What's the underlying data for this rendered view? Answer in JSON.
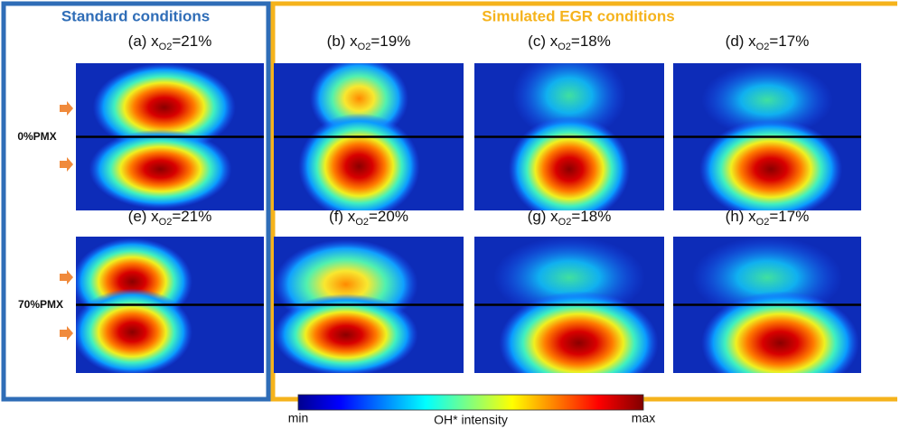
{
  "groups": {
    "standard": "Standard conditions",
    "egr": "Simulated EGR conditions"
  },
  "rows": [
    "0%PMX",
    "70%PMX"
  ],
  "panels": [
    {
      "prefix": "(a) x",
      "sub": "O2",
      "suffix": "=21%"
    },
    {
      "prefix": "(b) x",
      "sub": "O2",
      "suffix": "=19%"
    },
    {
      "prefix": "(c) x",
      "sub": "O2",
      "suffix": "=18%"
    },
    {
      "prefix": "(d) x",
      "sub": "O2",
      "suffix": "=17%"
    },
    {
      "prefix": "(e) x",
      "sub": "O2",
      "suffix": "=21%"
    },
    {
      "prefix": "(f) x",
      "sub": "O2",
      "suffix": "=20%"
    },
    {
      "prefix": "(g) x",
      "sub": "O2",
      "suffix": "=18%"
    },
    {
      "prefix": "(h) x",
      "sub": "O2",
      "suffix": "=17%"
    }
  ],
  "colorbar": {
    "min": "min",
    "label": "OH* intensity",
    "max": "max"
  }
}
